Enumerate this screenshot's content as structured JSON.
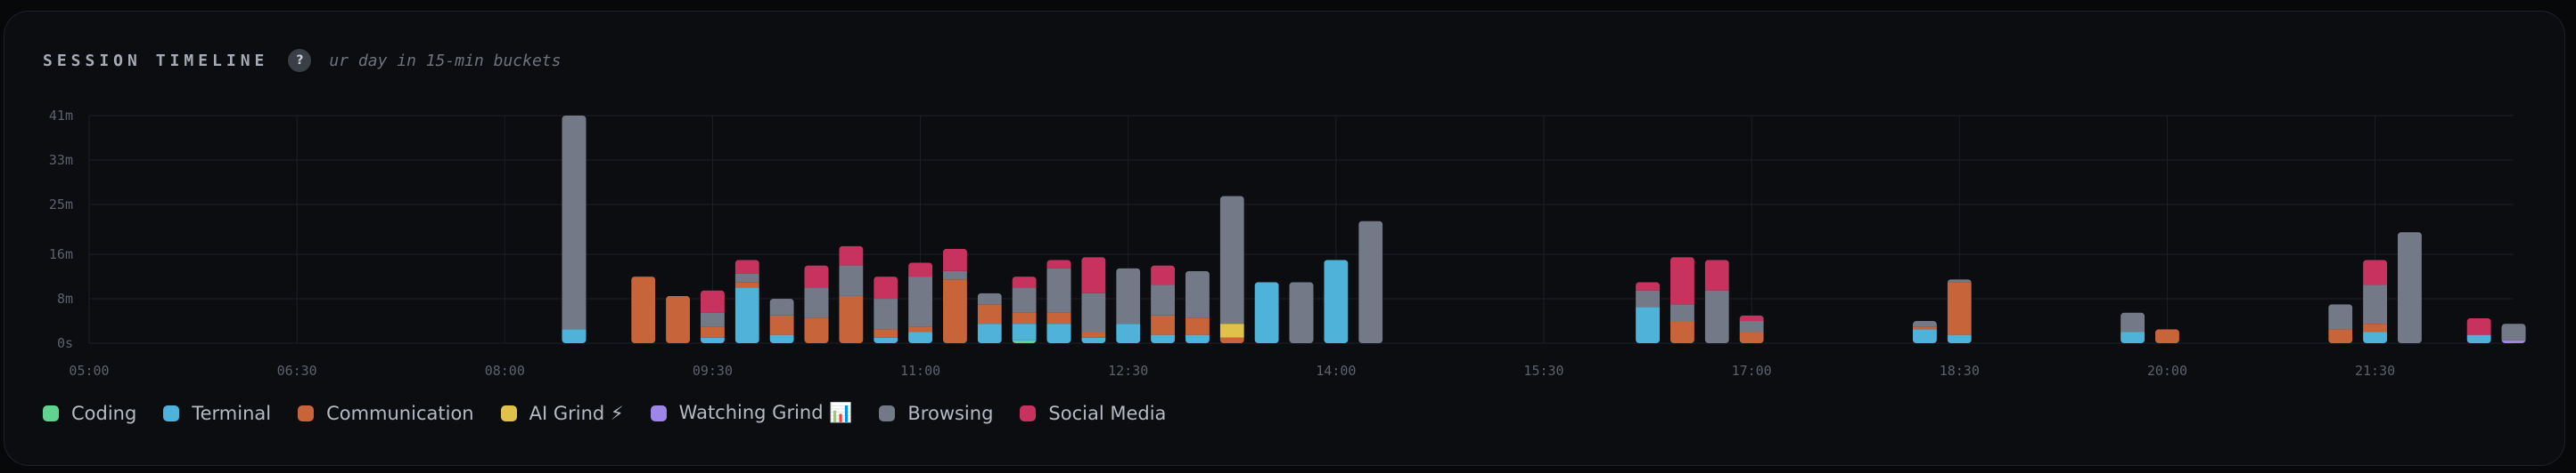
{
  "header": {
    "title": "SESSION TIMELINE",
    "help_glyph": "?",
    "subtitle": "ur day in 15-min buckets"
  },
  "colors": {
    "background": "#0b0d11",
    "grid": "#1c1f26",
    "axis_text": "#5d616b"
  },
  "chart_data": {
    "type": "bar",
    "stacked": true,
    "bucket": "15-min",
    "x_unit": "time of day",
    "xlim": [
      "05:00",
      "22:30"
    ],
    "ylim": [
      0,
      41
    ],
    "y_ticks": [
      "41m",
      "33m",
      "25m",
      "16m",
      "8m",
      "0s"
    ],
    "y_tick_values": [
      41,
      33,
      25,
      16,
      8,
      0
    ],
    "x_ticks": [
      "05:00",
      "06:30",
      "08:00",
      "09:30",
      "11:00",
      "12:30",
      "14:00",
      "15:30",
      "17:00",
      "18:30",
      "20:00",
      "21:30"
    ],
    "grid": true,
    "legend_position": "bottom-left",
    "series": [
      {
        "name": "Coding",
        "color": "#5fd38f",
        "icon": ""
      },
      {
        "name": "Terminal",
        "color": "#4fb3d9",
        "icon": ""
      },
      {
        "name": "Communication",
        "color": "#c8643a",
        "icon": ""
      },
      {
        "name": "AI Grind ⚡",
        "color": "#e0c24a",
        "icon": "lightning-icon"
      },
      {
        "name": "Watching Grind 📊",
        "color": "#9e86e8",
        "icon": "chart-icon"
      },
      {
        "name": "Browsing",
        "color": "#747987",
        "icon": ""
      },
      {
        "name": "Social Media",
        "color": "#c7325f",
        "icon": ""
      }
    ],
    "buckets": [
      {
        "t": "08:30",
        "v": {
          "Terminal": 2.5,
          "Browsing": 38.5
        }
      },
      {
        "t": "09:00",
        "v": {
          "Communication": 12
        }
      },
      {
        "t": "09:15",
        "v": {
          "Communication": 8.5
        }
      },
      {
        "t": "09:30",
        "v": {
          "Communication": 2,
          "Terminal": 1,
          "Browsing": 2.5,
          "Social Media": 4
        }
      },
      {
        "t": "09:45",
        "v": {
          "Terminal": 10,
          "Communication": 1,
          "Browsing": 1.5,
          "Social Media": 2.5
        }
      },
      {
        "t": "10:00",
        "v": {
          "Terminal": 1.5,
          "Communication": 3.5,
          "Browsing": 3
        }
      },
      {
        "t": "10:15",
        "v": {
          "Communication": 4.5,
          "Browsing": 5.5,
          "Social Media": 4
        }
      },
      {
        "t": "10:30",
        "v": {
          "Communication": 8.5,
          "Browsing": 5.5,
          "Social Media": 3.5
        }
      },
      {
        "t": "10:45",
        "v": {
          "Terminal": 1,
          "Communication": 1.5,
          "Browsing": 5.5,
          "Social Media": 4
        }
      },
      {
        "t": "11:00",
        "v": {
          "Terminal": 2,
          "Communication": 1,
          "Browsing": 9,
          "Social Media": 2.5
        }
      },
      {
        "t": "11:15",
        "v": {
          "Communication": 11.5,
          "Browsing": 1.5,
          "Social Media": 4
        }
      },
      {
        "t": "11:30",
        "v": {
          "Terminal": 3.5,
          "Communication": 3.5,
          "Browsing": 2
        }
      },
      {
        "t": "11:45",
        "v": {
          "Coding": 0.5,
          "Terminal": 3,
          "Communication": 2,
          "Browsing": 4.5,
          "Social Media": 2
        }
      },
      {
        "t": "12:00",
        "v": {
          "Terminal": 3.5,
          "Communication": 2,
          "Browsing": 8,
          "Social Media": 1.5
        }
      },
      {
        "t": "12:15",
        "v": {
          "Terminal": 1,
          "Communication": 1,
          "Browsing": 7,
          "Social Media": 6.5
        }
      },
      {
        "t": "12:30",
        "v": {
          "Terminal": 3.5,
          "Browsing": 10
        }
      },
      {
        "t": "12:45",
        "v": {
          "Terminal": 1.5,
          "Communication": 3.5,
          "Browsing": 5.5,
          "Social Media": 3.5
        }
      },
      {
        "t": "13:00",
        "v": {
          "Terminal": 1.5,
          "Communication": 3,
          "Browsing": 8.5
        }
      },
      {
        "t": "13:15",
        "v": {
          "Communication": 1,
          "AI Grind ⚡": 2.5,
          "Browsing": 23
        }
      },
      {
        "t": "13:30",
        "v": {
          "Terminal": 11
        }
      },
      {
        "t": "13:45",
        "v": {
          "Browsing": 11
        }
      },
      {
        "t": "14:00",
        "v": {
          "Terminal": 15
        }
      },
      {
        "t": "14:15",
        "v": {
          "Browsing": 22
        }
      },
      {
        "t": "16:15",
        "v": {
          "Terminal": 6.5,
          "Browsing": 3,
          "Social Media": 1.5
        }
      },
      {
        "t": "16:30",
        "v": {
          "Communication": 4,
          "Browsing": 3,
          "Social Media": 8.5
        }
      },
      {
        "t": "16:45",
        "v": {
          "Browsing": 9.5,
          "Social Media": 5.5
        }
      },
      {
        "t": "17:00",
        "v": {
          "Communication": 2,
          "Browsing": 2,
          "Social Media": 1
        }
      },
      {
        "t": "18:15",
        "v": {
          "Terminal": 2.5,
          "Browsing": 1,
          "Communication": 0.5
        }
      },
      {
        "t": "18:30",
        "v": {
          "Terminal": 1.5,
          "Communication": 9.5,
          "Browsing": 0.5
        }
      },
      {
        "t": "19:45",
        "v": {
          "Terminal": 2,
          "Browsing": 3.5
        }
      },
      {
        "t": "20:00",
        "v": {
          "Communication": 2.5
        }
      },
      {
        "t": "21:15",
        "v": {
          "Communication": 2.5,
          "Browsing": 4.5
        }
      },
      {
        "t": "21:30",
        "v": {
          "Terminal": 2,
          "Communication": 1.5,
          "Browsing": 7,
          "Social Media": 4.5
        }
      },
      {
        "t": "21:45",
        "v": {
          "Browsing": 20
        }
      },
      {
        "t": "22:15",
        "v": {
          "Terminal": 1.5,
          "Social Media": 3
        }
      },
      {
        "t": "22:30",
        "v": {
          "Watching Grind 📊": 0.5,
          "Browsing": 3
        }
      }
    ]
  }
}
